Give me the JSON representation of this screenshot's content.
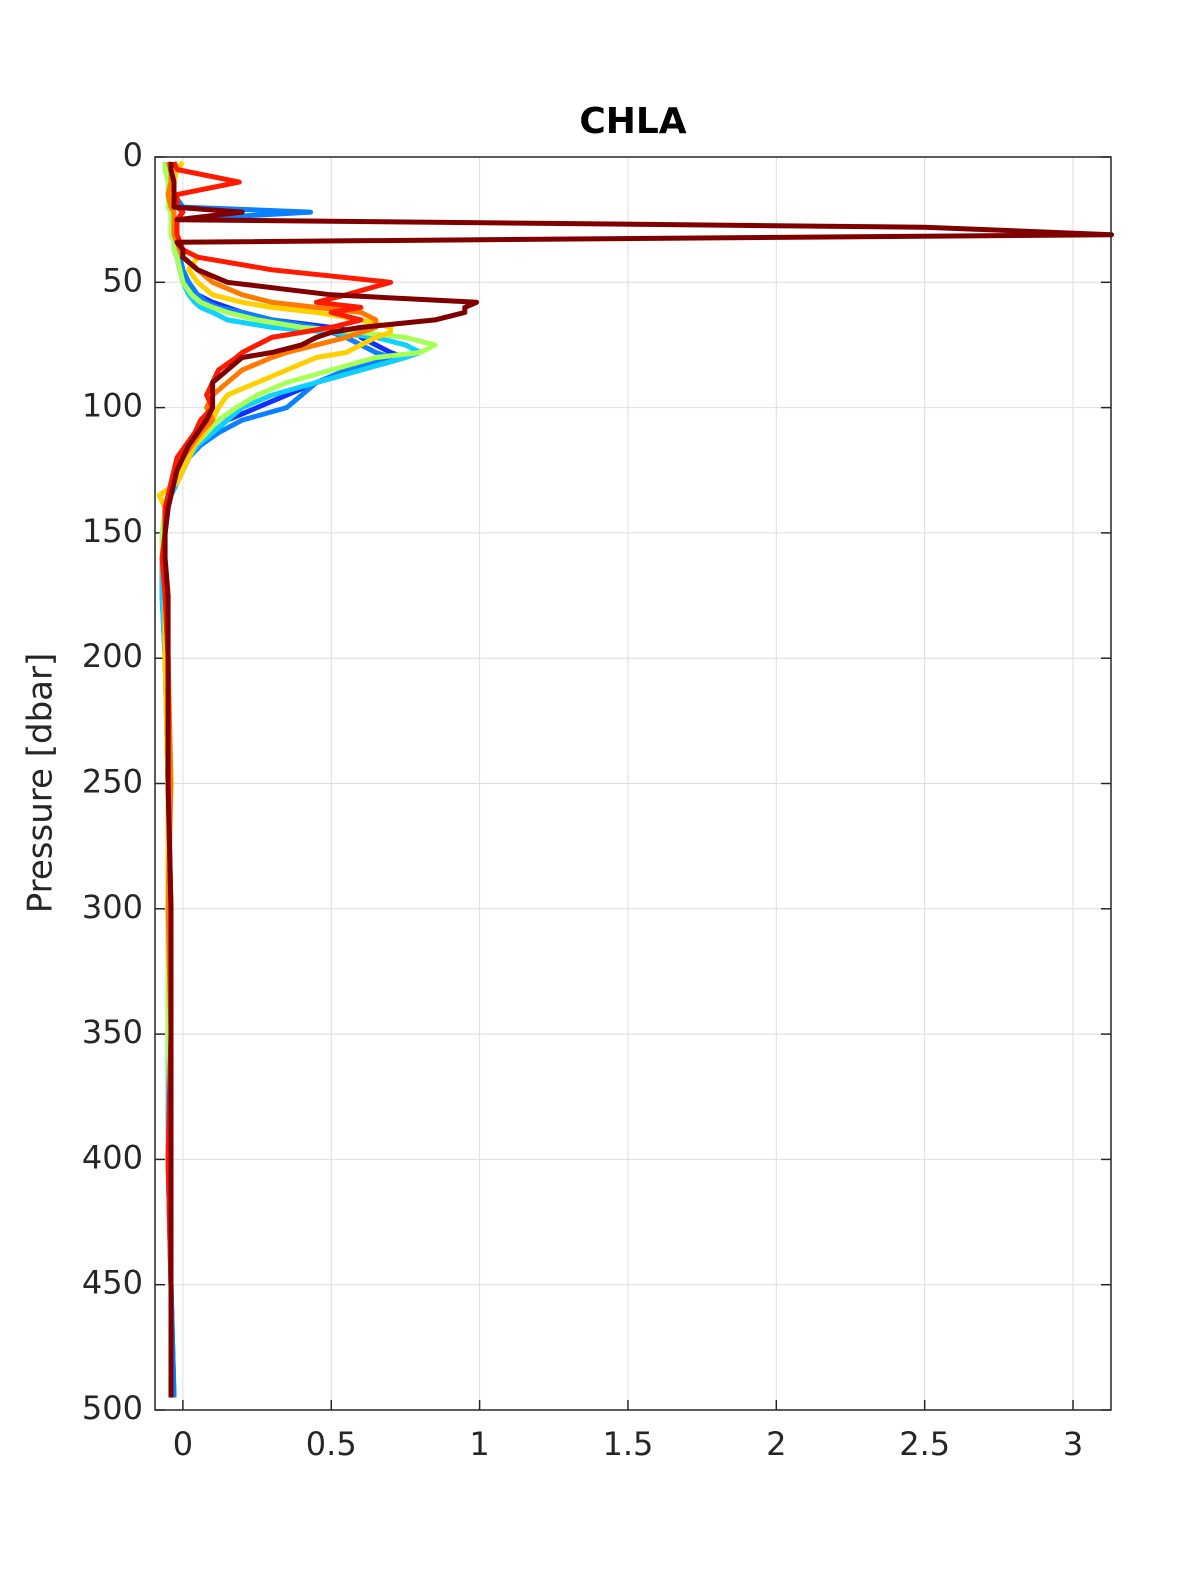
{
  "chart_data": {
    "type": "line",
    "title": "CHLA",
    "y_label": "Pressure [dbar]",
    "y_reversed": true,
    "grid": true,
    "xlim": [
      -0.094,
      3.128
    ],
    "xticks": [
      0,
      0.5,
      1,
      1.5,
      2,
      2.5,
      3
    ],
    "ylim": [
      0,
      500
    ],
    "yticks": [
      0,
      50,
      100,
      150,
      200,
      250,
      300,
      350,
      400,
      450,
      500
    ],
    "pressure": [
      2,
      5,
      10,
      15,
      20,
      22,
      25,
      28,
      31,
      34,
      37,
      40,
      45,
      50,
      55,
      58,
      60,
      62,
      65,
      68,
      70,
      72,
      75,
      78,
      80,
      85,
      90,
      95,
      100,
      105,
      110,
      115,
      120,
      125,
      130,
      135,
      140,
      150,
      160,
      175,
      200,
      250,
      300,
      350,
      400,
      450,
      495
    ],
    "series": [
      {
        "color": "#1030ff",
        "values": [
          -0.04,
          -0.04,
          -0.04,
          -0.04,
          -0.04,
          -0.04,
          -0.03,
          -0.03,
          -0.03,
          -0.03,
          -0.03,
          -0.02,
          -0.01,
          0.0,
          0.05,
          0.1,
          0.15,
          0.2,
          0.3,
          0.5,
          0.6,
          0.6,
          0.65,
          0.7,
          0.75,
          0.6,
          0.45,
          0.35,
          0.25,
          0.15,
          0.1,
          0.05,
          0.02,
          0.0,
          -0.02,
          -0.04,
          -0.05,
          -0.06,
          -0.07,
          -0.07,
          -0.06,
          -0.05,
          -0.05,
          -0.04,
          -0.05,
          -0.04,
          -0.03
        ]
      },
      {
        "color": "#0a80ff",
        "values": [
          -0.04,
          -0.04,
          -0.03,
          -0.03,
          0.0,
          0.43,
          -0.02,
          -0.02,
          -0.02,
          -0.02,
          -0.02,
          -0.01,
          0.0,
          0.02,
          0.05,
          0.08,
          0.12,
          0.2,
          0.3,
          0.45,
          0.5,
          0.55,
          0.6,
          0.65,
          0.7,
          0.55,
          0.45,
          0.4,
          0.35,
          0.2,
          0.12,
          0.06,
          0.02,
          0.0,
          -0.02,
          -0.04,
          -0.05,
          -0.06,
          -0.07,
          -0.06,
          -0.06,
          -0.05,
          -0.05,
          -0.04,
          -0.04,
          -0.04,
          -0.03
        ]
      },
      {
        "color": "#10d0ff",
        "values": [
          -0.05,
          -0.05,
          -0.05,
          -0.04,
          -0.04,
          -0.04,
          -0.04,
          -0.04,
          -0.03,
          -0.03,
          -0.02,
          -0.02,
          -0.01,
          0.0,
          0.02,
          0.04,
          0.06,
          0.1,
          0.15,
          0.3,
          0.5,
          0.65,
          0.75,
          0.8,
          0.75,
          0.6,
          0.45,
          0.3,
          0.2,
          0.15,
          0.1,
          0.05,
          0.02,
          0.0,
          -0.02,
          -0.04,
          -0.05,
          -0.06,
          -0.07,
          -0.07,
          -0.06,
          -0.05,
          -0.05,
          -0.05,
          -0.05,
          -0.04,
          -0.04
        ]
      },
      {
        "color": "#a8ff58",
        "values": [
          -0.06,
          -0.06,
          -0.05,
          -0.05,
          -0.05,
          -0.04,
          -0.04,
          -0.04,
          -0.04,
          -0.03,
          -0.03,
          -0.02,
          -0.01,
          0.0,
          0.03,
          0.06,
          0.1,
          0.15,
          0.25,
          0.4,
          0.6,
          0.75,
          0.85,
          0.8,
          0.65,
          0.5,
          0.35,
          0.25,
          0.18,
          0.12,
          0.08,
          0.04,
          0.01,
          -0.01,
          -0.03,
          -0.05,
          -0.06,
          -0.07,
          -0.07,
          -0.06,
          -0.06,
          -0.05,
          -0.05,
          -0.05,
          -0.04,
          -0.04,
          -0.04
        ]
      },
      {
        "color": "#ffd000",
        "values": [
          0.0,
          -0.02,
          -0.03,
          -0.04,
          -0.03,
          -0.03,
          -0.03,
          -0.02,
          -0.02,
          -0.02,
          0.0,
          0.05,
          0.02,
          0.05,
          0.1,
          0.2,
          0.3,
          0.45,
          0.6,
          0.7,
          0.7,
          0.65,
          0.6,
          0.55,
          0.45,
          0.35,
          0.25,
          0.15,
          0.12,
          0.1,
          0.07,
          0.04,
          0.02,
          0.0,
          -0.02,
          -0.08,
          -0.06,
          -0.06,
          -0.07,
          -0.06,
          -0.06,
          -0.05,
          -0.05,
          -0.04,
          -0.04,
          -0.04,
          -0.04
        ]
      },
      {
        "color": "#ff7a00",
        "values": [
          -0.05,
          -0.04,
          -0.04,
          -0.05,
          -0.04,
          -0.03,
          -0.03,
          -0.03,
          -0.03,
          -0.02,
          -0.01,
          0.0,
          0.05,
          0.1,
          0.2,
          0.3,
          0.45,
          0.6,
          0.65,
          0.65,
          0.6,
          0.55,
          0.45,
          0.35,
          0.3,
          0.2,
          0.15,
          0.1,
          0.08,
          0.1,
          0.06,
          0.03,
          0.0,
          -0.02,
          -0.03,
          -0.05,
          -0.06,
          -0.06,
          -0.07,
          -0.06,
          -0.05,
          -0.04,
          -0.05,
          -0.04,
          -0.05,
          -0.04,
          -0.04
        ]
      },
      {
        "color": "#ff1a00",
        "values": [
          -0.03,
          -0.02,
          0.19,
          -0.02,
          -0.02,
          0.0,
          -0.02,
          -0.02,
          -0.02,
          -0.01,
          0.0,
          0.05,
          0.3,
          0.7,
          0.55,
          0.45,
          0.6,
          0.5,
          0.6,
          0.5,
          0.4,
          0.3,
          0.25,
          0.2,
          0.18,
          0.12,
          0.1,
          0.08,
          0.1,
          0.06,
          0.04,
          0.01,
          -0.02,
          -0.03,
          -0.04,
          -0.05,
          -0.06,
          -0.06,
          -0.07,
          -0.06,
          -0.05,
          -0.05,
          -0.04,
          -0.04,
          -0.05,
          -0.04,
          -0.04
        ]
      },
      {
        "color": "#800000",
        "values": [
          -0.04,
          -0.04,
          -0.03,
          -0.03,
          -0.03,
          0.2,
          -0.02,
          2.5,
          3.13,
          -0.02,
          0.0,
          0.0,
          0.05,
          0.15,
          0.5,
          0.99,
          0.95,
          0.95,
          0.85,
          0.6,
          0.5,
          0.45,
          0.4,
          0.3,
          0.2,
          0.15,
          0.1,
          0.1,
          0.1,
          0.08,
          0.05,
          0.02,
          0.0,
          -0.02,
          -0.03,
          -0.04,
          -0.05,
          -0.06,
          -0.06,
          -0.05,
          -0.05,
          -0.05,
          -0.04,
          -0.04,
          -0.04,
          -0.04,
          -0.04
        ]
      }
    ]
  }
}
